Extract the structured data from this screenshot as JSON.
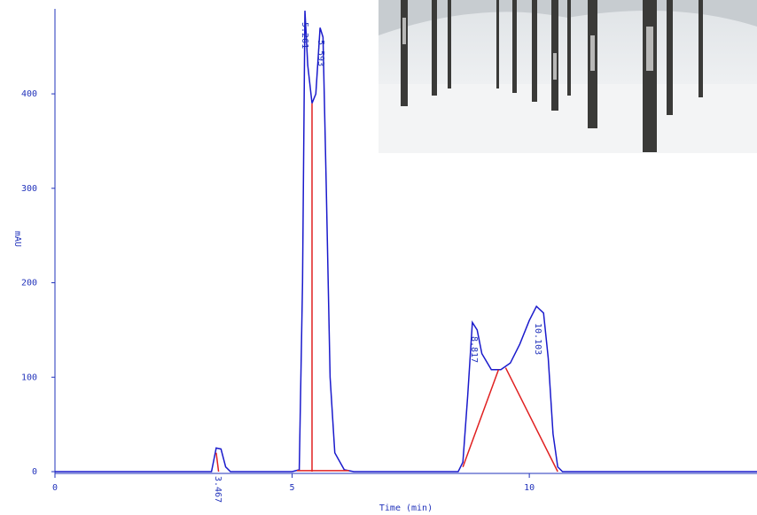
{
  "chart_data": {
    "type": "line",
    "xlabel": "Time (min)",
    "ylabel": "mAU",
    "xlim": [
      0,
      14.8
    ],
    "ylim": [
      0,
      490
    ],
    "xticks": [
      0,
      5,
      10
    ],
    "yticks": [
      0,
      100,
      200,
      300,
      400
    ],
    "series": [
      {
        "color": "#1a1acc",
        "x": [
          0,
          3.3,
          3.4,
          3.5,
          3.6,
          3.7,
          5.0,
          5.15,
          5.22,
          5.27,
          5.33,
          5.42,
          5.5,
          5.59,
          5.65,
          5.72,
          5.8,
          5.9,
          6.1,
          6.3,
          8.5,
          8.6,
          8.7,
          8.8,
          8.9,
          9.0,
          9.2,
          9.4,
          9.6,
          9.8,
          10.0,
          10.15,
          10.3,
          10.4,
          10.5,
          10.6,
          10.7,
          14.8
        ],
        "y": [
          0,
          0,
          25,
          24,
          5,
          0,
          0,
          2,
          200,
          488,
          430,
          390,
          400,
          470,
          460,
          300,
          100,
          20,
          2,
          0,
          0,
          10,
          80,
          158,
          150,
          125,
          108,
          108,
          115,
          135,
          160,
          175,
          168,
          120,
          40,
          5,
          0,
          0
        ]
      },
      {
        "color": "#e02020",
        "x": [
          3.4,
          3.45,
          null,
          5.42,
          5.42,
          null,
          5.1,
          6.2,
          null,
          8.6,
          9.35,
          null,
          9.5,
          10.6
        ],
        "y": [
          20,
          0,
          null,
          0,
          390,
          null,
          1,
          1,
          null,
          5,
          108,
          null,
          110,
          0
        ]
      }
    ],
    "peak_labels": [
      "3.467",
      "5.261",
      "5.593",
      "8.817",
      "10.103"
    ]
  }
}
